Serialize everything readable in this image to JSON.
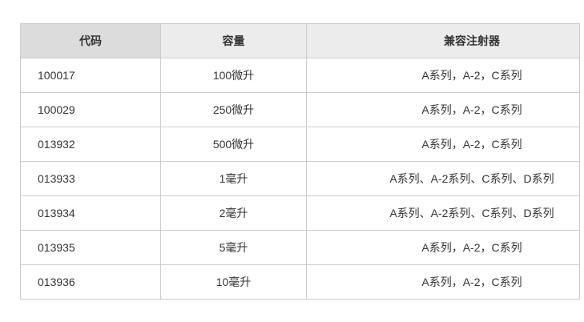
{
  "table": {
    "columns": [
      {
        "key": "code",
        "label": "代码"
      },
      {
        "key": "capacity",
        "label": "容量"
      },
      {
        "key": "syringes",
        "label": "兼容注射器"
      }
    ],
    "rows": [
      {
        "code": "100017",
        "capacity": "100微升",
        "syringes": "A系列，A-2，C系列"
      },
      {
        "code": "100029",
        "capacity": "250微升",
        "syringes": "A系列，A-2，C系列"
      },
      {
        "code": "013932",
        "capacity": "500微升",
        "syringes": "A系列，A-2，C系列"
      },
      {
        "code": "013933",
        "capacity": "1毫升",
        "syringes": "A系列、A-2系列、C系列、D系列"
      },
      {
        "code": "013934",
        "capacity": "2毫升",
        "syringes": "A系列、A-2系列、C系列、D系列"
      },
      {
        "code": "013935",
        "capacity": "5毫升",
        "syringes": "A系列，A-2，C系列"
      },
      {
        "code": "013936",
        "capacity": "10毫升",
        "syringes": "A系列，A-2，C系列"
      }
    ]
  },
  "colors": {
    "header_first_cell_bg": "#dcdcdc",
    "header_bg": "#ececec",
    "border": "#cccccc",
    "text": "#333333",
    "body_bg": "#ffffff"
  }
}
